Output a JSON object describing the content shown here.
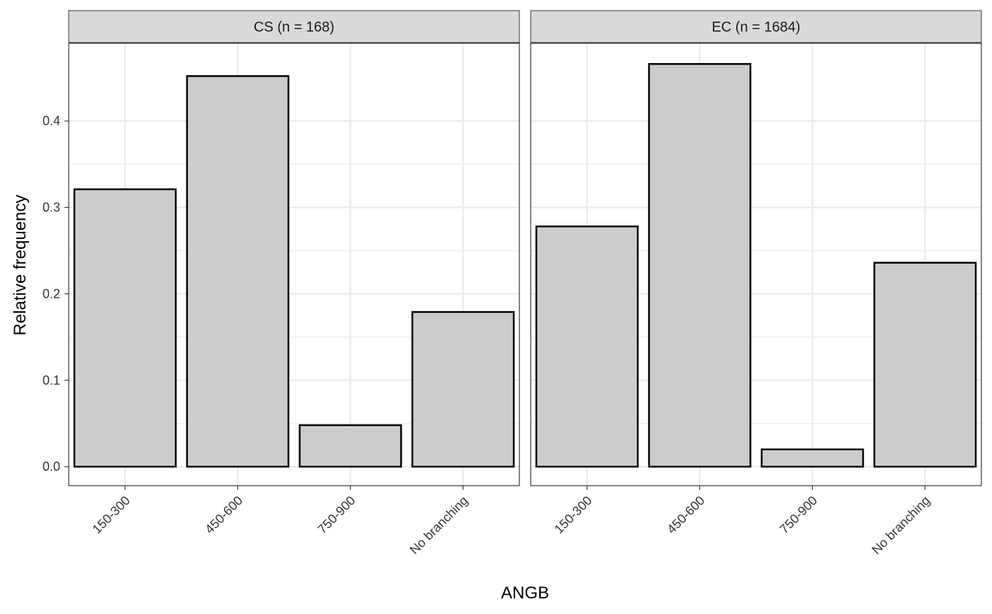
{
  "chart_data": [
    {
      "type": "bar",
      "panel": "CS (n = 168)",
      "categories": [
        "150-300",
        "450-600",
        "750-900",
        "No branching"
      ],
      "values": [
        0.321,
        0.452,
        0.048,
        0.179
      ],
      "ylim": [
        -0.022,
        0.49
      ],
      "yticks": [
        0.0,
        0.1,
        0.2,
        0.3,
        0.4
      ],
      "ytick_labels": [
        "0.0",
        "0.1",
        "0.2",
        "0.3",
        "0.4"
      ]
    },
    {
      "type": "bar",
      "panel": "EC (n = 1684)",
      "categories": [
        "150-300",
        "450-600",
        "750-900",
        "No branching"
      ],
      "values": [
        0.278,
        0.466,
        0.02,
        0.236
      ],
      "ylim": [
        -0.022,
        0.49
      ],
      "yticks": [
        0.0,
        0.1,
        0.2,
        0.3,
        0.4
      ],
      "ytick_labels": [
        "0.0",
        "0.1",
        "0.2",
        "0.3",
        "0.4"
      ]
    }
  ],
  "xlabel": "ANGB",
  "ylabel": "Relative frequency",
  "bar_fill": "#cccccc",
  "bar_stroke": "#000000",
  "strip_fill": "#d9d9d9",
  "grid_color": "#ebebeb"
}
